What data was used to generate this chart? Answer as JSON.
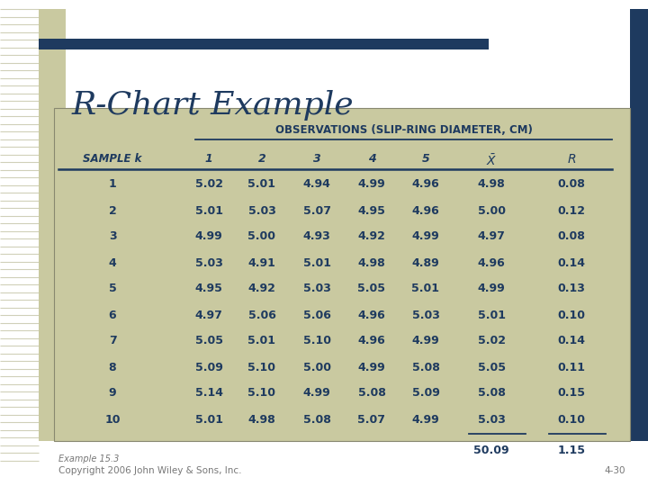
{
  "title": "R-Chart Example",
  "title_color": "#1e3a5f",
  "bg_color": "#ffffff",
  "table_bg": "#c9c9a0",
  "header_color": "#1e3a5f",
  "data_color": "#1e3a5f",
  "top_bar_color": "#1e3a5f",
  "right_bar_color": "#1e3a5f",
  "left_stripe_color": "#c9c9a0",
  "obs_header": "OBSERVATIONS (SLIP-RING DIAMETER, CM)",
  "rows": [
    [
      1,
      5.02,
      5.01,
      4.94,
      4.99,
      4.96,
      4.98,
      0.08
    ],
    [
      2,
      5.01,
      5.03,
      5.07,
      4.95,
      4.96,
      5.0,
      0.12
    ],
    [
      3,
      4.99,
      5.0,
      4.93,
      4.92,
      4.99,
      4.97,
      0.08
    ],
    [
      4,
      5.03,
      4.91,
      5.01,
      4.98,
      4.89,
      4.96,
      0.14
    ],
    [
      5,
      4.95,
      4.92,
      5.03,
      5.05,
      5.01,
      4.99,
      0.13
    ],
    [
      6,
      4.97,
      5.06,
      5.06,
      4.96,
      5.03,
      5.01,
      0.1
    ],
    [
      7,
      5.05,
      5.01,
      5.1,
      4.96,
      4.99,
      5.02,
      0.14
    ],
    [
      8,
      5.09,
      5.1,
      5.0,
      4.99,
      5.08,
      5.05,
      0.11
    ],
    [
      9,
      5.14,
      5.1,
      4.99,
      5.08,
      5.09,
      5.08,
      0.15
    ],
    [
      10,
      5.01,
      4.98,
      5.08,
      5.07,
      4.99,
      5.03,
      0.1
    ]
  ],
  "totals": [
    50.09,
    1.15
  ],
  "footer_left": "Example 15.3",
  "footer_center": "Copyright 2006 John Wiley & Sons, Inc.",
  "footer_right": "4-30",
  "footer_color": "#777777",
  "stripe_lines_color": "#d8d8c0"
}
